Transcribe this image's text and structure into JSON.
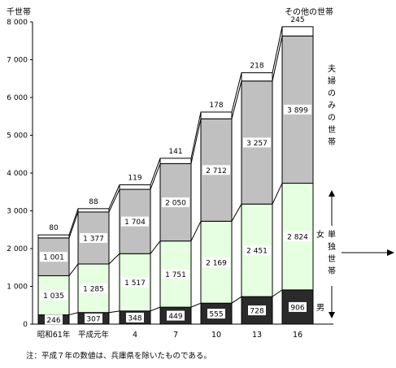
{
  "chart_data": {
    "type": "bar",
    "ylabel": "千世帯",
    "ylim": [
      0,
      8000
    ],
    "yticks": [
      "0",
      "1 000",
      "2 000",
      "3 000",
      "4 000",
      "5 000",
      "6 000",
      "7 000",
      "8 000"
    ],
    "categories": [
      "昭和61年",
      "平成元年",
      "4",
      "7",
      "10",
      "13",
      "16"
    ],
    "series": [
      {
        "name": "男",
        "values": [
          246,
          307,
          348,
          449,
          555,
          728,
          906
        ],
        "labels": [
          "246",
          "307",
          "348",
          "449",
          "555",
          "728",
          "906"
        ],
        "color": "#2a2a2a"
      },
      {
        "name": "女",
        "values": [
          1035,
          1285,
          1517,
          1751,
          2169,
          2451,
          2824
        ],
        "labels": [
          "1 035",
          "1 285",
          "1 517",
          "1 751",
          "2 169",
          "2 451",
          "2 824"
        ],
        "color": "#e6ffe0"
      },
      {
        "name": "夫婦のみの世帯",
        "values": [
          1001,
          1377,
          1704,
          2050,
          2712,
          3257,
          3899
        ],
        "labels": [
          "1 001",
          "1 377",
          "1 704",
          "2 050",
          "2 712",
          "3 257",
          "3 899"
        ],
        "color": "#c0c0c0"
      },
      {
        "name": "その他の世帯",
        "values": [
          80,
          88,
          119,
          141,
          178,
          218,
          245
        ],
        "labels": [
          "80",
          "88",
          "119",
          "141",
          "178",
          "218",
          "245"
        ],
        "color": "#ffffff"
      }
    ],
    "group_label": "単独世帯",
    "legend_couple_chars": [
      "夫",
      "婦",
      "の",
      "み",
      "の",
      "世",
      "帯"
    ],
    "legend_single_chars": [
      "単",
      "独",
      "世",
      "帯"
    ],
    "note": "注：平成７年の数値は、兵庫県を除いたものである。"
  },
  "colors": {
    "axis": "#000000",
    "border": "#000000"
  }
}
